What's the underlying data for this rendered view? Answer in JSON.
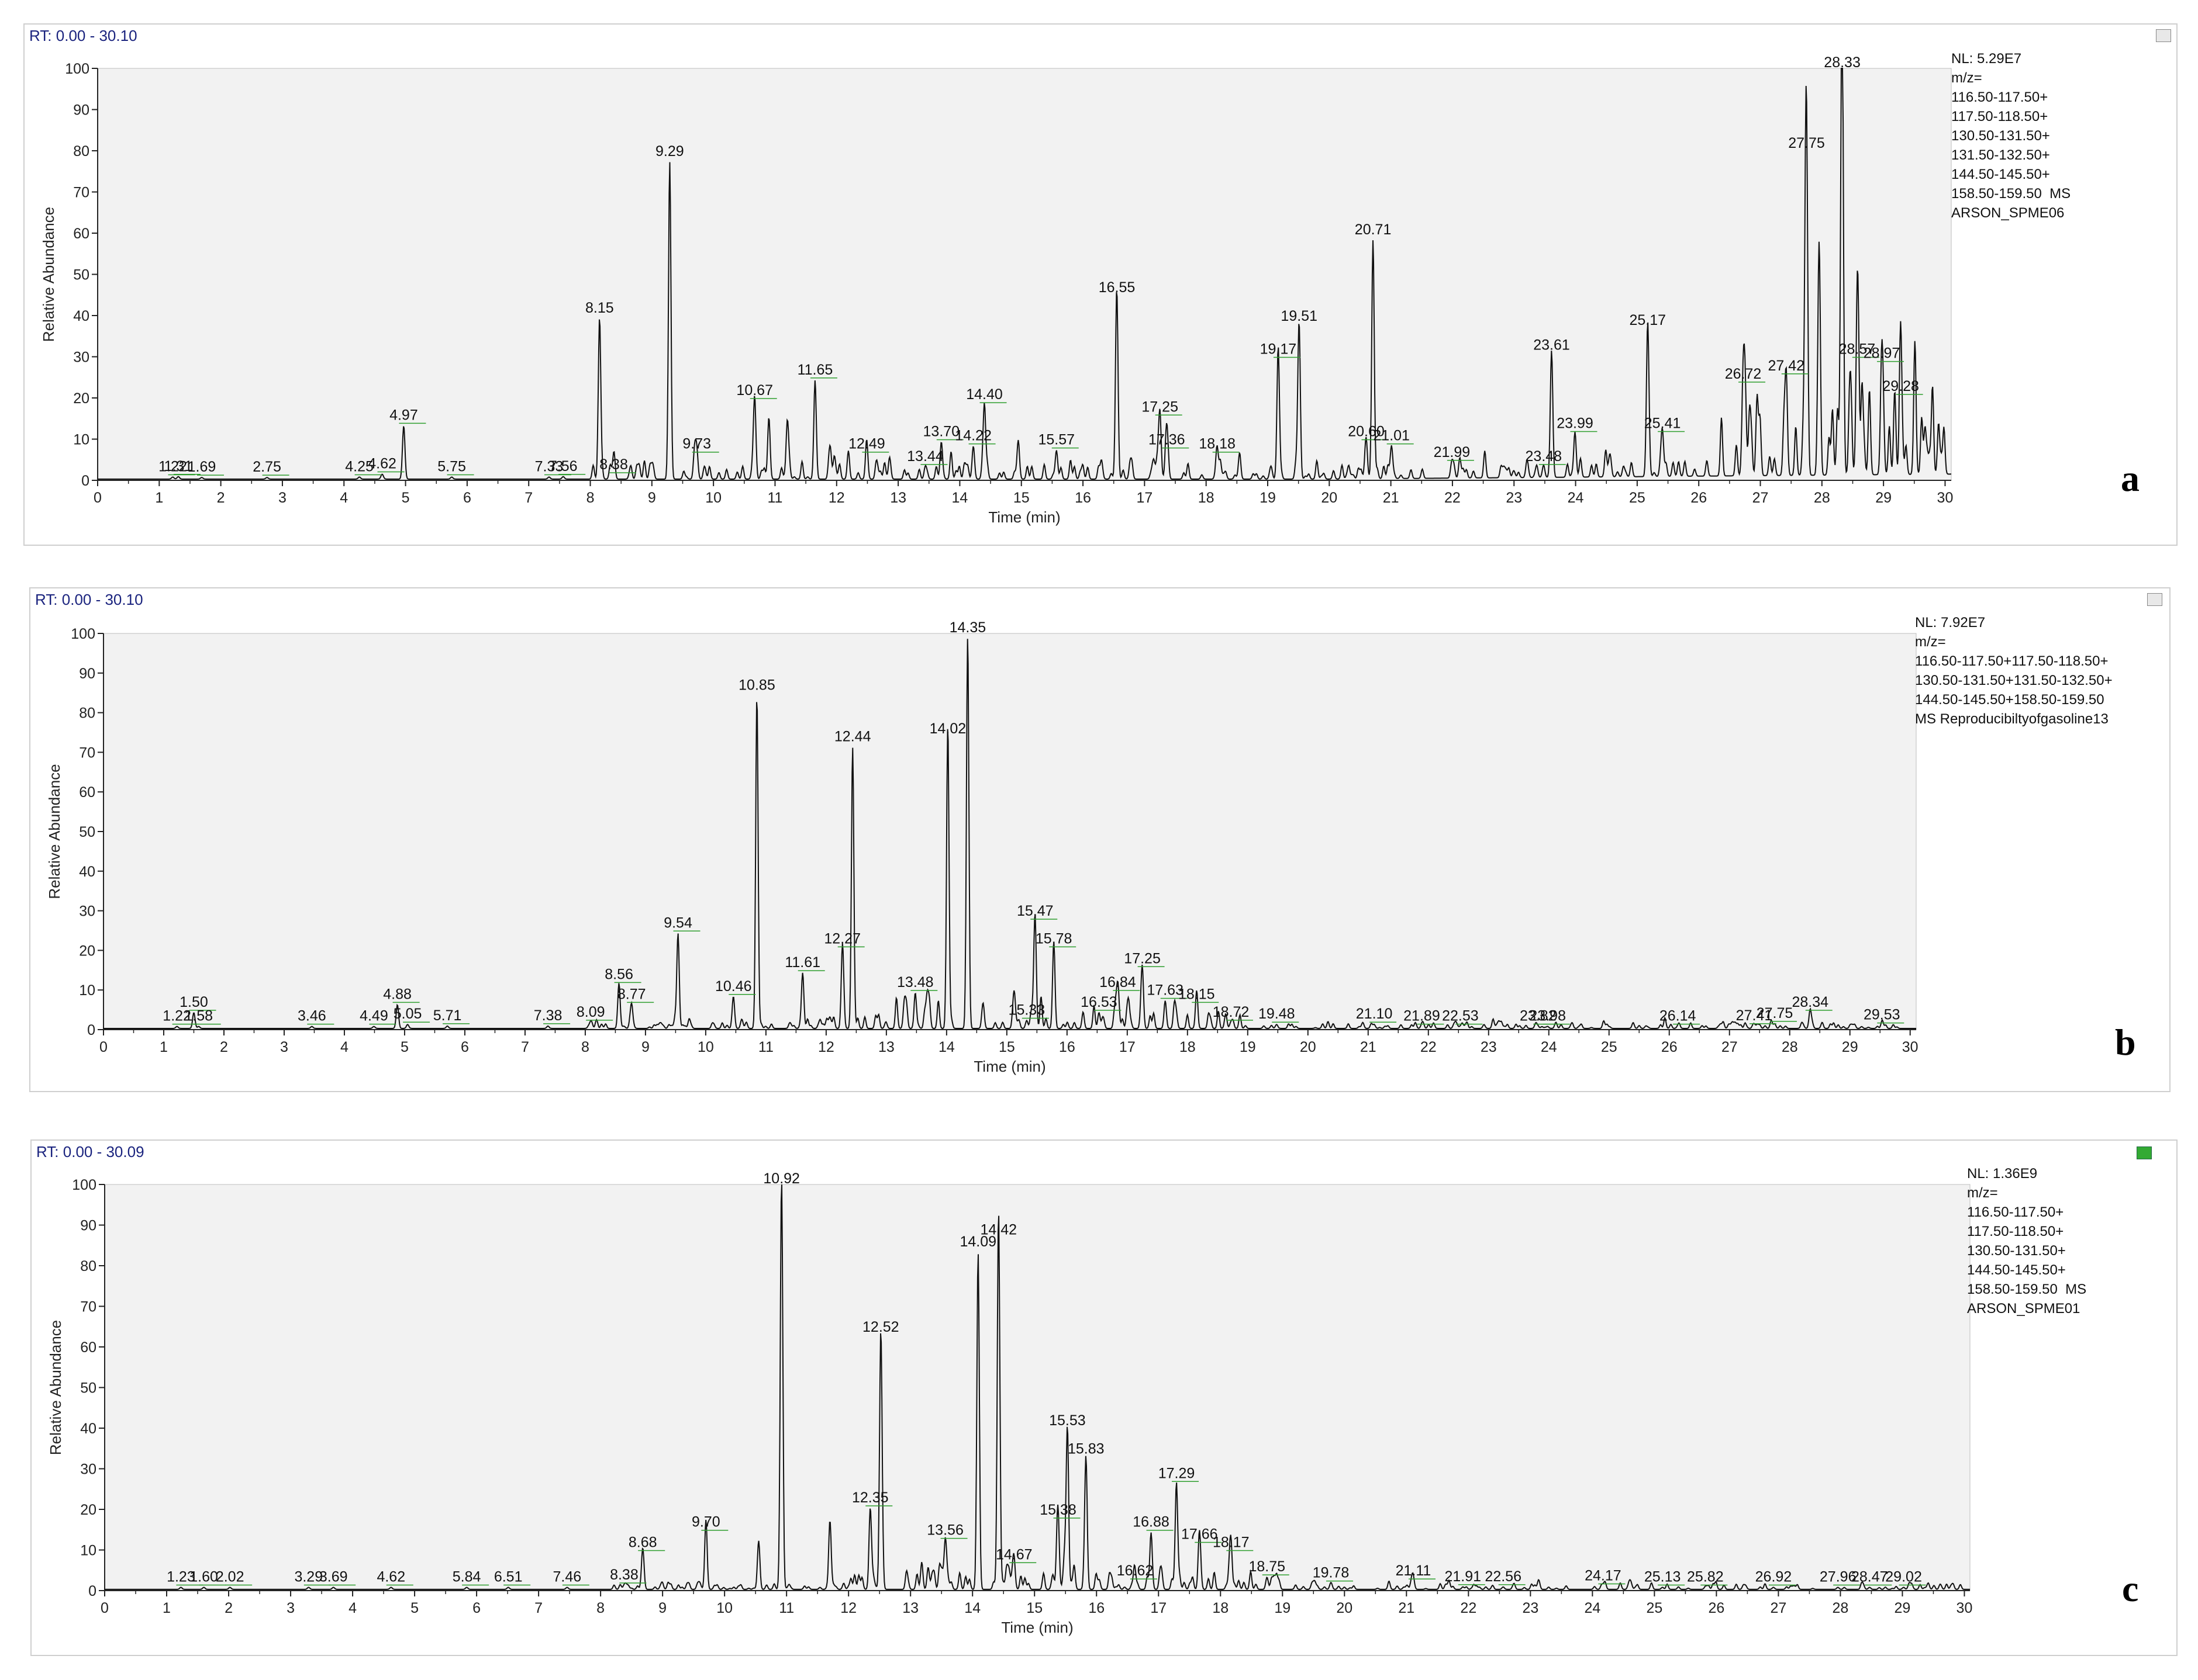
{
  "chart_data": [
    {
      "type": "line",
      "panel": "a",
      "rt_range": "RT: 0.00 - 30.10",
      "info": [
        "NL: 5.29E7",
        "m/z=",
        "116.50-117.50+",
        "117.50-118.50+",
        "130.50-131.50+",
        "131.50-132.50+",
        "144.50-145.50+",
        "158.50-159.50  MS",
        "ARSON_SPME06"
      ],
      "xlabel": "Time (min)",
      "ylabel": "Relative Abundance",
      "xlim": [
        0,
        30.1
      ],
      "ylim": [
        0,
        100
      ],
      "peaks": [
        {
          "x": 1.22,
          "y": 0.5,
          "label": "1.22"
        },
        {
          "x": 1.31,
          "y": 0.6,
          "label": "1.31"
        },
        {
          "x": 1.69,
          "y": 0.4,
          "label": "1.69"
        },
        {
          "x": 2.75,
          "y": 0.4,
          "label": "2.75"
        },
        {
          "x": 4.25,
          "y": 0.5,
          "label": "4.25"
        },
        {
          "x": 4.62,
          "y": 1.2,
          "label": "4.62"
        },
        {
          "x": 4.97,
          "y": 13,
          "label": "4.97"
        },
        {
          "x": 5.75,
          "y": 0.5,
          "label": "5.75"
        },
        {
          "x": 7.33,
          "y": 0.5,
          "label": "7.33"
        },
        {
          "x": 7.56,
          "y": 0.6,
          "label": "7.56"
        },
        {
          "x": 8.15,
          "y": 39,
          "label": "8.15"
        },
        {
          "x": 8.38,
          "y": 1,
          "label": "8.38"
        },
        {
          "x": 9.29,
          "y": 77,
          "label": "9.29"
        },
        {
          "x": 9.73,
          "y": 6,
          "label": "9.73"
        },
        {
          "x": 10.67,
          "y": 19,
          "label": "10.67"
        },
        {
          "x": 10.9,
          "y": 15,
          "label": ""
        },
        {
          "x": 11.2,
          "y": 14,
          "label": ""
        },
        {
          "x": 11.65,
          "y": 24,
          "label": "11.65"
        },
        {
          "x": 12.49,
          "y": 6,
          "label": "12.49"
        },
        {
          "x": 13.44,
          "y": 3,
          "label": "13.44"
        },
        {
          "x": 13.7,
          "y": 9,
          "label": "13.70"
        },
        {
          "x": 14.22,
          "y": 8,
          "label": "14.22"
        },
        {
          "x": 14.4,
          "y": 18,
          "label": "14.40"
        },
        {
          "x": 15.57,
          "y": 7,
          "label": "15.57"
        },
        {
          "x": 16.55,
          "y": 44,
          "label": "16.55"
        },
        {
          "x": 17.25,
          "y": 15,
          "label": "17.25"
        },
        {
          "x": 17.36,
          "y": 7,
          "label": "17.36"
        },
        {
          "x": 18.18,
          "y": 6,
          "label": "18.18"
        },
        {
          "x": 19.17,
          "y": 29,
          "label": "19.17"
        },
        {
          "x": 19.51,
          "y": 37,
          "label": "19.51"
        },
        {
          "x": 20.6,
          "y": 9,
          "label": "20.60"
        },
        {
          "x": 20.71,
          "y": 58,
          "label": "20.71"
        },
        {
          "x": 21.01,
          "y": 8,
          "label": "21.01"
        },
        {
          "x": 21.99,
          "y": 4,
          "label": "21.99"
        },
        {
          "x": 23.48,
          "y": 3,
          "label": "23.48"
        },
        {
          "x": 23.61,
          "y": 30,
          "label": "23.61"
        },
        {
          "x": 23.99,
          "y": 11,
          "label": "23.99"
        },
        {
          "x": 25.17,
          "y": 36,
          "label": "25.17"
        },
        {
          "x": 25.41,
          "y": 11,
          "label": "25.41"
        },
        {
          "x": 26.72,
          "y": 23,
          "label": "26.72"
        },
        {
          "x": 27.42,
          "y": 25,
          "label": "27.42"
        },
        {
          "x": 27.75,
          "y": 79,
          "label": "27.75"
        },
        {
          "x": 27.95,
          "y": 44,
          "label": ""
        },
        {
          "x": 28.33,
          "y": 100,
          "label": "28.33"
        },
        {
          "x": 28.57,
          "y": 29,
          "label": "28.57"
        },
        {
          "x": 28.97,
          "y": 28,
          "label": "28.97"
        },
        {
          "x": 29.28,
          "y": 20,
          "label": "29.28"
        }
      ]
    },
    {
      "type": "line",
      "panel": "b",
      "rt_range": "RT: 0.00 - 30.10",
      "info": [
        "NL: 7.92E7",
        "m/z=",
        "116.50-117.50+117.50-118.50+",
        "130.50-131.50+131.50-132.50+",
        "144.50-145.50+158.50-159.50",
        "MS Reproducibiltyofgasoline13"
      ],
      "xlabel": "Time (min)",
      "ylabel": "Relative Abundance",
      "xlim": [
        0,
        30.1
      ],
      "ylim": [
        0,
        100
      ],
      "peaks": [
        {
          "x": 1.22,
          "y": 0.5,
          "label": "1.22"
        },
        {
          "x": 1.5,
          "y": 4,
          "label": "1.50"
        },
        {
          "x": 1.58,
          "y": 0.5,
          "label": "1.58"
        },
        {
          "x": 3.46,
          "y": 0.5,
          "label": "3.46"
        },
        {
          "x": 4.49,
          "y": 0.5,
          "label": "4.49"
        },
        {
          "x": 4.88,
          "y": 6,
          "label": "4.88"
        },
        {
          "x": 5.05,
          "y": 1,
          "label": "5.05"
        },
        {
          "x": 5.71,
          "y": 0.6,
          "label": "5.71"
        },
        {
          "x": 7.38,
          "y": 0.6,
          "label": "7.38"
        },
        {
          "x": 8.09,
          "y": 1.5,
          "label": "8.09"
        },
        {
          "x": 8.56,
          "y": 11,
          "label": "8.56"
        },
        {
          "x": 8.77,
          "y": 6,
          "label": "8.77"
        },
        {
          "x": 9.54,
          "y": 24,
          "label": "9.54"
        },
        {
          "x": 10.46,
          "y": 8,
          "label": "10.46"
        },
        {
          "x": 10.85,
          "y": 84,
          "label": "10.85"
        },
        {
          "x": 11.61,
          "y": 14,
          "label": "11.61"
        },
        {
          "x": 12.27,
          "y": 20,
          "label": "12.27"
        },
        {
          "x": 12.44,
          "y": 71,
          "label": "12.44"
        },
        {
          "x": 13.3,
          "y": 7,
          "label": ""
        },
        {
          "x": 13.48,
          "y": 9,
          "label": "13.48"
        },
        {
          "x": 14.02,
          "y": 73,
          "label": "14.02"
        },
        {
          "x": 14.35,
          "y": 99,
          "label": "14.35"
        },
        {
          "x": 15.33,
          "y": 2,
          "label": "15.33"
        },
        {
          "x": 15.47,
          "y": 27,
          "label": "15.47"
        },
        {
          "x": 15.78,
          "y": 20,
          "label": "15.78"
        },
        {
          "x": 16.53,
          "y": 4,
          "label": "16.53"
        },
        {
          "x": 16.84,
          "y": 9,
          "label": "16.84"
        },
        {
          "x": 17.25,
          "y": 15,
          "label": "17.25"
        },
        {
          "x": 17.63,
          "y": 7,
          "label": "17.63"
        },
        {
          "x": 18.15,
          "y": 6,
          "label": "18.15"
        },
        {
          "x": 18.72,
          "y": 1.5,
          "label": "18.72"
        },
        {
          "x": 19.48,
          "y": 1,
          "label": "19.48"
        },
        {
          "x": 21.1,
          "y": 1,
          "label": "21.10"
        },
        {
          "x": 21.89,
          "y": 0.5,
          "label": "21.89"
        },
        {
          "x": 22.53,
          "y": 0.5,
          "label": "22.53"
        },
        {
          "x": 23.82,
          "y": 0.5,
          "label": "23.82"
        },
        {
          "x": 23.98,
          "y": 0.5,
          "label": "23.98"
        },
        {
          "x": 26.14,
          "y": 0.5,
          "label": "26.14"
        },
        {
          "x": 27.41,
          "y": 0.6,
          "label": "27.41"
        },
        {
          "x": 27.75,
          "y": 1.2,
          "label": "27.75"
        },
        {
          "x": 28.34,
          "y": 4,
          "label": "28.34"
        },
        {
          "x": 29.53,
          "y": 0.8,
          "label": "29.53"
        }
      ]
    },
    {
      "type": "line",
      "panel": "c",
      "rt_range": "RT: 0.00 - 30.09",
      "info": [
        "NL: 1.36E9",
        "m/z=",
        "116.50-117.50+",
        "117.50-118.50+",
        "130.50-131.50+",
        "144.50-145.50+",
        "158.50-159.50  MS",
        "ARSON_SPME01"
      ],
      "xlabel": "Time (min)",
      "ylabel": "Relative Abundance",
      "xlim": [
        0,
        30.09
      ],
      "ylim": [
        0,
        100
      ],
      "peaks": [
        {
          "x": 1.23,
          "y": 0.5,
          "label": "1.23"
        },
        {
          "x": 1.6,
          "y": 0.5,
          "label": "1.60"
        },
        {
          "x": 2.02,
          "y": 0.5,
          "label": "2.02"
        },
        {
          "x": 3.29,
          "y": 0.5,
          "label": "3.29"
        },
        {
          "x": 3.69,
          "y": 0.5,
          "label": "3.69"
        },
        {
          "x": 4.62,
          "y": 0.5,
          "label": "4.62"
        },
        {
          "x": 5.84,
          "y": 0.5,
          "label": "5.84"
        },
        {
          "x": 6.51,
          "y": 0.5,
          "label": "6.51"
        },
        {
          "x": 7.46,
          "y": 0.5,
          "label": "7.46"
        },
        {
          "x": 8.38,
          "y": 1,
          "label": "8.38"
        },
        {
          "x": 8.68,
          "y": 9,
          "label": "8.68"
        },
        {
          "x": 9.7,
          "y": 14,
          "label": "9.70"
        },
        {
          "x": 10.55,
          "y": 12,
          "label": ""
        },
        {
          "x": 10.92,
          "y": 100,
          "label": "10.92"
        },
        {
          "x": 11.7,
          "y": 17,
          "label": ""
        },
        {
          "x": 12.35,
          "y": 20,
          "label": "12.35"
        },
        {
          "x": 12.52,
          "y": 62,
          "label": "12.52"
        },
        {
          "x": 13.56,
          "y": 12,
          "label": "13.56"
        },
        {
          "x": 14.09,
          "y": 83,
          "label": "14.09"
        },
        {
          "x": 14.42,
          "y": 86,
          "label": "14.42"
        },
        {
          "x": 14.67,
          "y": 6,
          "label": "14.67"
        },
        {
          "x": 15.38,
          "y": 17,
          "label": "15.38"
        },
        {
          "x": 15.53,
          "y": 39,
          "label": "15.53"
        },
        {
          "x": 15.83,
          "y": 32,
          "label": "15.83"
        },
        {
          "x": 16.62,
          "y": 2,
          "label": "16.62"
        },
        {
          "x": 16.88,
          "y": 14,
          "label": "16.88"
        },
        {
          "x": 17.29,
          "y": 26,
          "label": "17.29"
        },
        {
          "x": 17.66,
          "y": 11,
          "label": "17.66"
        },
        {
          "x": 18.17,
          "y": 9,
          "label": "18.17"
        },
        {
          "x": 18.75,
          "y": 3,
          "label": "18.75"
        },
        {
          "x": 19.78,
          "y": 1.5,
          "label": "19.78"
        },
        {
          "x": 21.11,
          "y": 2,
          "label": "21.11"
        },
        {
          "x": 21.91,
          "y": 0.6,
          "label": "21.91"
        },
        {
          "x": 22.56,
          "y": 0.6,
          "label": "22.56"
        },
        {
          "x": 24.17,
          "y": 0.8,
          "label": "24.17"
        },
        {
          "x": 25.13,
          "y": 0.5,
          "label": "25.13"
        },
        {
          "x": 25.82,
          "y": 0.5,
          "label": "25.82"
        },
        {
          "x": 26.92,
          "y": 0.5,
          "label": "26.92"
        },
        {
          "x": 27.96,
          "y": 0.5,
          "label": "27.96"
        },
        {
          "x": 28.47,
          "y": 0.5,
          "label": "28.47"
        },
        {
          "x": 29.02,
          "y": 0.5,
          "label": "29.02"
        }
      ]
    }
  ],
  "colors": {
    "trace": "#111111",
    "plot_bg": "#f2f2f2",
    "label_line": "#2e9e2e",
    "rt_text": "#1a237e"
  },
  "icons": {
    "panel_a_corner": "pin-icon",
    "panel_b_corner": "pin-icon",
    "panel_c_corner": "green-status-icon"
  }
}
